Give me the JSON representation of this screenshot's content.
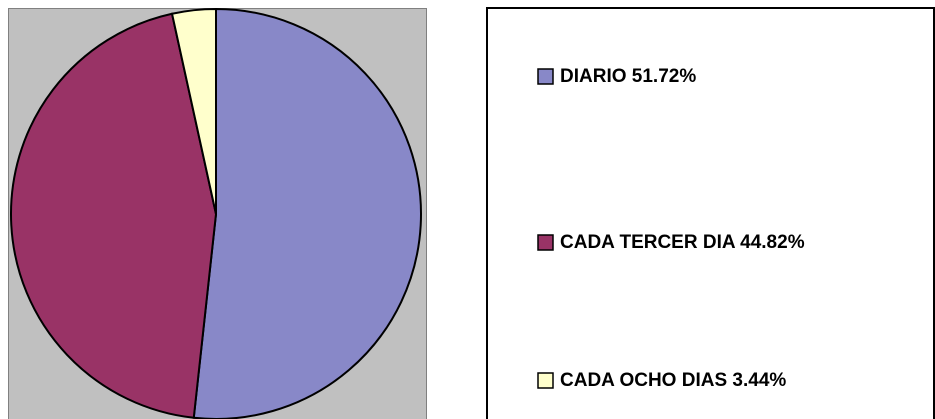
{
  "chart_data": {
    "type": "pie",
    "categories": [
      "DIARIO 51.72%",
      "CADA TERCER DIA 44.82%",
      "CADA OCHO DIAS 3.44%"
    ],
    "values": [
      51.72,
      44.82,
      3.44
    ],
    "colors": [
      "#8888c8",
      "#993366",
      "#ffffcc"
    ]
  }
}
